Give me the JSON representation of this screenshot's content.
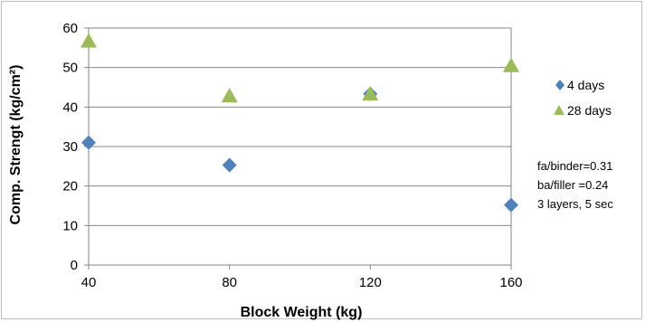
{
  "chart_data": {
    "type": "scatter",
    "xlabel": "Block Weight (kg)",
    "ylabel": "Comp. Strengt (kg/cm²)",
    "xlim": [
      40,
      160
    ],
    "ylim": [
      0,
      60
    ],
    "x_ticks": [
      "40",
      "80",
      "120",
      "160"
    ],
    "y_ticks": [
      "0",
      "10",
      "20",
      "30",
      "40",
      "50",
      "60"
    ],
    "grid": "horizontal",
    "legend_position": "right",
    "series": [
      {
        "name": "4 days",
        "marker": "diamond",
        "color": "#4f81bd",
        "x": [
          40,
          80,
          120,
          160
        ],
        "y": [
          31,
          25.3,
          43.3,
          15.2
        ]
      },
      {
        "name": "28 days",
        "marker": "triangle",
        "color": "#9bbb59",
        "x": [
          40,
          80,
          120,
          160
        ],
        "y": [
          56.7,
          42.8,
          43.3,
          50.5
        ]
      }
    ],
    "annotations": [
      "fa/binder=0.31",
      "ba/filler =0.24",
      "3 layers, 5 sec"
    ]
  }
}
